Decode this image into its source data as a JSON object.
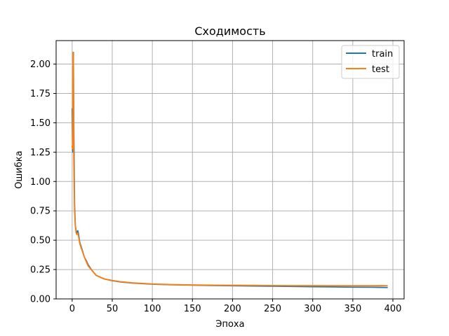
{
  "chart_data": {
    "type": "line",
    "title": "Сходимость",
    "xlabel": "Эпоха",
    "ylabel": "Ошибка",
    "xlim": [
      -20,
      414
    ],
    "ylim": [
      0,
      2.2
    ],
    "xticks": [
      0,
      50,
      100,
      150,
      200,
      250,
      300,
      350,
      400
    ],
    "xtick_labels": [
      "0",
      "50",
      "100",
      "150",
      "200",
      "250",
      "300",
      "350",
      "400"
    ],
    "yticks": [
      0.0,
      0.25,
      0.5,
      0.75,
      1.0,
      1.25,
      1.5,
      1.75,
      2.0
    ],
    "ytick_labels": [
      "0.00",
      "0.25",
      "0.50",
      "0.75",
      "1.00",
      "1.25",
      "1.50",
      "1.75",
      "2.00"
    ],
    "grid": true,
    "legend_position": "top-right",
    "series": [
      {
        "name": "train",
        "color": "#1f77b4",
        "x": [
          0,
          0.5,
          1,
          1.5,
          2,
          3,
          4,
          5,
          6,
          7,
          8,
          9,
          10,
          12,
          15,
          18,
          20,
          25,
          30,
          40,
          50,
          60,
          75,
          100,
          125,
          150,
          175,
          200,
          225,
          250,
          275,
          300,
          325,
          350,
          375,
          385,
          393
        ],
        "y": [
          1.62,
          1.28,
          1.25,
          2.1,
          1.5,
          0.8,
          0.62,
          0.58,
          0.56,
          0.58,
          0.55,
          0.5,
          0.47,
          0.43,
          0.36,
          0.32,
          0.29,
          0.24,
          0.2,
          0.17,
          0.155,
          0.145,
          0.135,
          0.125,
          0.12,
          0.117,
          0.114,
          0.112,
          0.11,
          0.108,
          0.106,
          0.104,
          0.102,
          0.1,
          0.099,
          0.098,
          0.097
        ]
      },
      {
        "name": "test",
        "color": "#ff7f0e",
        "x": [
          0,
          0.5,
          1,
          1.5,
          2,
          3,
          4,
          5,
          6,
          7,
          8,
          9,
          10,
          12,
          15,
          18,
          20,
          25,
          30,
          40,
          50,
          60,
          75,
          100,
          125,
          150,
          175,
          200,
          225,
          250,
          275,
          300,
          325,
          350,
          375,
          385,
          393
        ],
        "y": [
          1.3,
          1.28,
          2.1,
          2.05,
          1.2,
          0.75,
          0.62,
          0.56,
          0.55,
          0.56,
          0.53,
          0.49,
          0.46,
          0.42,
          0.36,
          0.31,
          0.28,
          0.24,
          0.2,
          0.17,
          0.157,
          0.147,
          0.137,
          0.127,
          0.122,
          0.119,
          0.117,
          0.116,
          0.115,
          0.114,
          0.113,
          0.113,
          0.112,
          0.112,
          0.112,
          0.113,
          0.112
        ]
      }
    ]
  }
}
